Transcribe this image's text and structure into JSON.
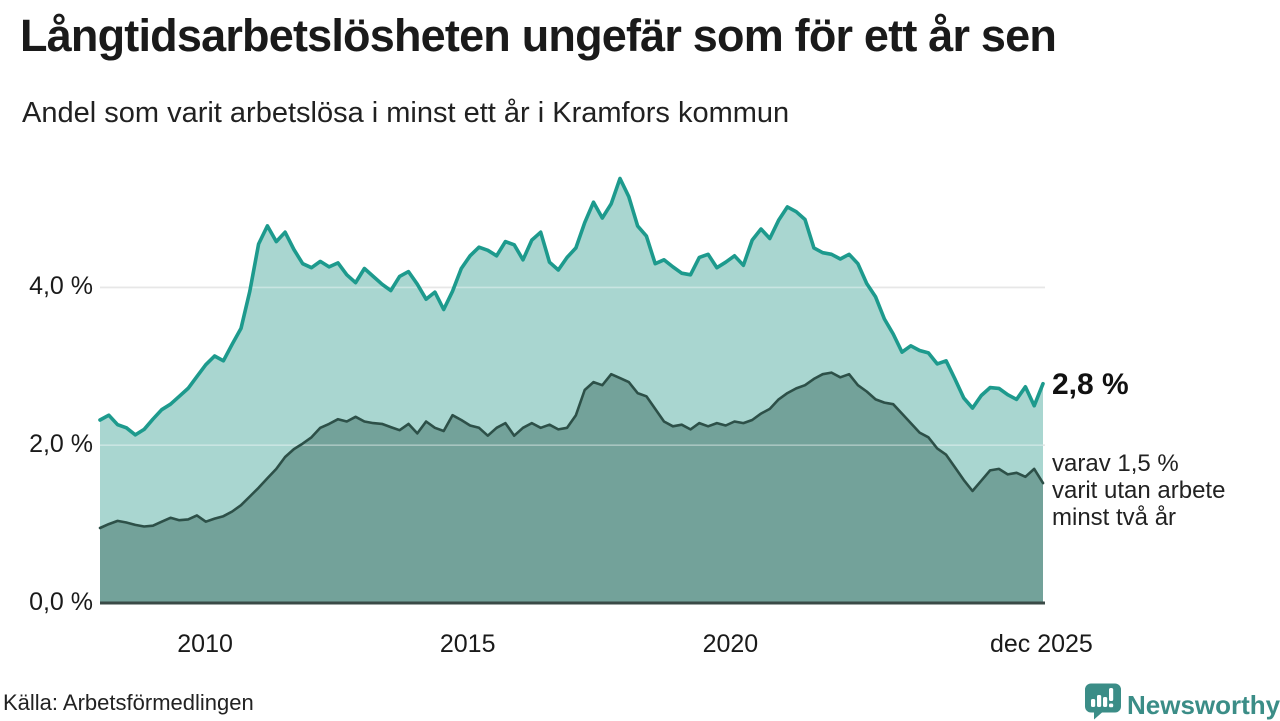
{
  "header": {
    "title": "Långtidsarbetslösheten ungefär som för ett år sen",
    "subtitle": "Andel som varit arbetslösa i minst ett år i Kramfors kommun"
  },
  "chart_data": {
    "type": "area",
    "title": "Långtidsarbetslösheten ungefär som för ett år sen",
    "subtitle": "Andel som varit arbetslösa i minst ett år i Kramfors kommun",
    "xlabel": "",
    "ylabel": "",
    "grid": "horizontal",
    "legend_position": "none",
    "x_domain": [
      2008.0,
      2025.95
    ],
    "ylim": [
      0,
      5.7
    ],
    "x_ticks": [
      {
        "label": "2010",
        "t": 2010
      },
      {
        "label": "2015",
        "t": 2015
      },
      {
        "label": "2020",
        "t": 2020
      },
      {
        "label": "dec 2025",
        "t": 2025.92
      }
    ],
    "y_ticks": [
      {
        "label": "0,0 %",
        "v": 0
      },
      {
        "label": "2,0 %",
        "v": 2
      },
      {
        "label": "4,0 %",
        "v": 4
      }
    ],
    "series": [
      {
        "name": "Andel arbetslösa minst ett år",
        "end_value_label": "2,8 %",
        "values": [
          2.32,
          2.38,
          2.26,
          2.22,
          2.13,
          2.2,
          2.33,
          2.45,
          2.52,
          2.62,
          2.72,
          2.87,
          3.02,
          3.13,
          3.07,
          3.28,
          3.48,
          3.95,
          4.55,
          4.78,
          4.58,
          4.7,
          4.48,
          4.3,
          4.25,
          4.33,
          4.26,
          4.31,
          4.16,
          4.06,
          4.24,
          4.14,
          4.04,
          3.96,
          4.14,
          4.2,
          4.04,
          3.85,
          3.94,
          3.72,
          3.95,
          4.24,
          4.4,
          4.51,
          4.47,
          4.4,
          4.58,
          4.54,
          4.35,
          4.6,
          4.7,
          4.32,
          4.22,
          4.38,
          4.5,
          4.82,
          5.08,
          4.88,
          5.06,
          5.38,
          5.15,
          4.78,
          4.65,
          4.3,
          4.35,
          4.26,
          4.18,
          4.16,
          4.38,
          4.42,
          4.25,
          4.32,
          4.4,
          4.28,
          4.6,
          4.74,
          4.62,
          4.85,
          5.02,
          4.96,
          4.86,
          4.5,
          4.44,
          4.42,
          4.36,
          4.42,
          4.3,
          4.05,
          3.88,
          3.6,
          3.41,
          3.18,
          3.26,
          3.2,
          3.17,
          3.03,
          3.07,
          2.84,
          2.6,
          2.47,
          2.63,
          2.73,
          2.72,
          2.64,
          2.58,
          2.74,
          2.5,
          2.78
        ]
      },
      {
        "name": "varav utan arbete minst två år",
        "end_value_label": "1,5 %",
        "values": [
          0.95,
          1.0,
          1.04,
          1.02,
          0.99,
          0.97,
          0.98,
          1.03,
          1.08,
          1.05,
          1.06,
          1.11,
          1.03,
          1.07,
          1.1,
          1.16,
          1.24,
          1.35,
          1.46,
          1.58,
          1.7,
          1.85,
          1.95,
          2.02,
          2.1,
          2.22,
          2.27,
          2.33,
          2.3,
          2.36,
          2.3,
          2.28,
          2.27,
          2.23,
          2.19,
          2.27,
          2.15,
          2.3,
          2.22,
          2.18,
          2.38,
          2.32,
          2.25,
          2.22,
          2.12,
          2.22,
          2.28,
          2.12,
          2.22,
          2.28,
          2.22,
          2.26,
          2.2,
          2.22,
          2.38,
          2.7,
          2.8,
          2.76,
          2.9,
          2.85,
          2.8,
          2.66,
          2.62,
          2.46,
          2.3,
          2.24,
          2.26,
          2.2,
          2.28,
          2.24,
          2.28,
          2.25,
          2.3,
          2.28,
          2.32,
          2.4,
          2.46,
          2.58,
          2.66,
          2.72,
          2.76,
          2.84,
          2.9,
          2.92,
          2.86,
          2.9,
          2.76,
          2.68,
          2.58,
          2.54,
          2.52,
          2.4,
          2.28,
          2.16,
          2.1,
          1.96,
          1.88,
          1.72,
          1.56,
          1.42,
          1.55,
          1.68,
          1.7,
          1.63,
          1.65,
          1.6,
          1.7,
          1.52
        ]
      }
    ],
    "annotations": {
      "value_label": "2,8 %",
      "sub_label_lines": [
        "varav 1,5 %",
        "varit utan arbete",
        "minst två år"
      ]
    }
  },
  "footer": {
    "source": "Källa: Arbetsförmedlingen",
    "brand": "Newsworthy"
  },
  "colors": {
    "teal_line": "#1d9a8d",
    "light_fill": "#a9d6d0",
    "dark_line": "#2d5048",
    "dark_fill": "#73a29a",
    "gridline": "#d9d9d9",
    "grid_overlay": "rgba(255,255,255,0.38)",
    "axis_line": "#3a4a46",
    "brand_teal": "#3b8d87",
    "title_color": "#1a1a1a"
  }
}
